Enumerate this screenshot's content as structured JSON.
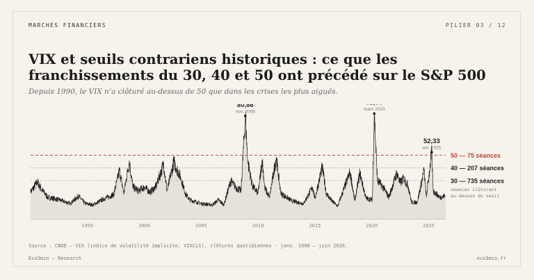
{
  "header": {
    "kicker": "MARCHÉS FINANCIERS",
    "pager": "PILIER 03 / 12"
  },
  "title": "VIX et seuils contrariens historiques : ce que les franchissements du 30, 40 et 50 ont précédé sur le S&P 500",
  "subtitle": "Depuis 1990, le VIX n’a clôturé au-dessus de 50 que dans les crises les plus aiguës.",
  "footer": {
    "source": "Source : CBOE — VIX (indice de volatilité implicite, VIXCLS), clôtures quotidiennes · janv. 1990 — juin 2026.",
    "left": "Eco3min — Research",
    "right": "eco3min.fr"
  },
  "colors": {
    "line": "#1c1c1c",
    "area": "#e6e2d9",
    "threshold_50": "#c44536",
    "threshold_other": "#9a9a9a",
    "text": "#222222"
  },
  "chart_data": {
    "type": "area",
    "xlim": [
      1990,
      2026.5
    ],
    "ylim": [
      0,
      90
    ],
    "x_ticks": [
      1995,
      2000,
      2005,
      2010,
      2015,
      2020,
      2025
    ],
    "tick_labels": [
      "1995",
      "2000",
      "2005",
      "2010",
      "2015",
      "2020",
      "2025"
    ],
    "series": [
      {
        "values": [
          [
            1990,
            21
          ],
          [
            1990.6,
            29
          ],
          [
            1990.9,
            24
          ],
          [
            1991.5,
            17
          ],
          [
            1992.5,
            15
          ],
          [
            1993.5,
            12
          ],
          [
            1994.2,
            18
          ],
          [
            1994.8,
            12
          ],
          [
            1995.5,
            11
          ],
          [
            1996.5,
            16
          ],
          [
            1997.3,
            19
          ],
          [
            1997.82,
            38
          ],
          [
            1998.2,
            20
          ],
          [
            1998.67,
            45
          ],
          [
            1999,
            25
          ],
          [
            1999.5,
            22
          ],
          [
            2000,
            25
          ],
          [
            2000.5,
            21
          ],
          [
            2001,
            25
          ],
          [
            2001.7,
            43
          ],
          [
            2002,
            22
          ],
          [
            2002.6,
            45
          ],
          [
            2002.8,
            40
          ],
          [
            2003.2,
            33
          ],
          [
            2003.6,
            20
          ],
          [
            2004,
            15
          ],
          [
            2005,
            12
          ],
          [
            2006,
            11
          ],
          [
            2006.5,
            15
          ],
          [
            2007,
            11
          ],
          [
            2007.6,
            30
          ],
          [
            2008,
            25
          ],
          [
            2008.5,
            22
          ],
          [
            2008.88,
            80.86
          ],
          [
            2009.1,
            45
          ],
          [
            2009.5,
            26
          ],
          [
            2010,
            20
          ],
          [
            2010.37,
            46
          ],
          [
            2010.6,
            24
          ],
          [
            2011,
            17
          ],
          [
            2011.6,
            48
          ],
          [
            2012,
            20
          ],
          [
            2012.5,
            17
          ],
          [
            2013,
            14
          ],
          [
            2014,
            12
          ],
          [
            2014.8,
            25
          ],
          [
            2015,
            16
          ],
          [
            2015.65,
            41
          ],
          [
            2016,
            20
          ],
          [
            2016.5,
            14
          ],
          [
            2017,
            10
          ],
          [
            2018.1,
            37
          ],
          [
            2018.5,
            14
          ],
          [
            2018.95,
            36
          ],
          [
            2019.5,
            16
          ],
          [
            2020.05,
            15
          ],
          [
            2020.22,
            82.69
          ],
          [
            2020.5,
            30
          ],
          [
            2021,
            25
          ],
          [
            2021.5,
            17
          ],
          [
            2022.2,
            36
          ],
          [
            2022.5,
            28
          ],
          [
            2022.8,
            32
          ],
          [
            2023.2,
            26
          ],
          [
            2023.5,
            13
          ],
          [
            2024,
            13
          ],
          [
            2024.6,
            38
          ],
          [
            2024.8,
            17
          ],
          [
            2025.27,
            52.33
          ],
          [
            2025.4,
            22
          ],
          [
            2026,
            17
          ],
          [
            2026.5,
            18
          ]
        ]
      }
    ],
    "annotations": [
      {
        "x": 2008.88,
        "y": 80.86,
        "value": "80,86",
        "date": "nov. 2008"
      },
      {
        "x": 2020.22,
        "y": 82.69,
        "value": "82,69",
        "date": "mars 2020"
      },
      {
        "x": 2025.27,
        "y": 52.33,
        "value": "52,33",
        "date": "avr. 2025"
      }
    ],
    "thresholds": [
      {
        "level": 50,
        "label": "50 — 75 séances",
        "color": "#c44536",
        "style": "dashed"
      },
      {
        "level": 40,
        "label": "40 — 207 séances",
        "color": "#9a9a9a",
        "style": "dotted"
      },
      {
        "level": 30,
        "label": "30 — 735 séances",
        "color": "#9a9a9a",
        "style": "dotted"
      }
    ],
    "threshold_note": [
      "séances clôturant",
      "au-dessus du seuil"
    ],
    "grid": false
  }
}
